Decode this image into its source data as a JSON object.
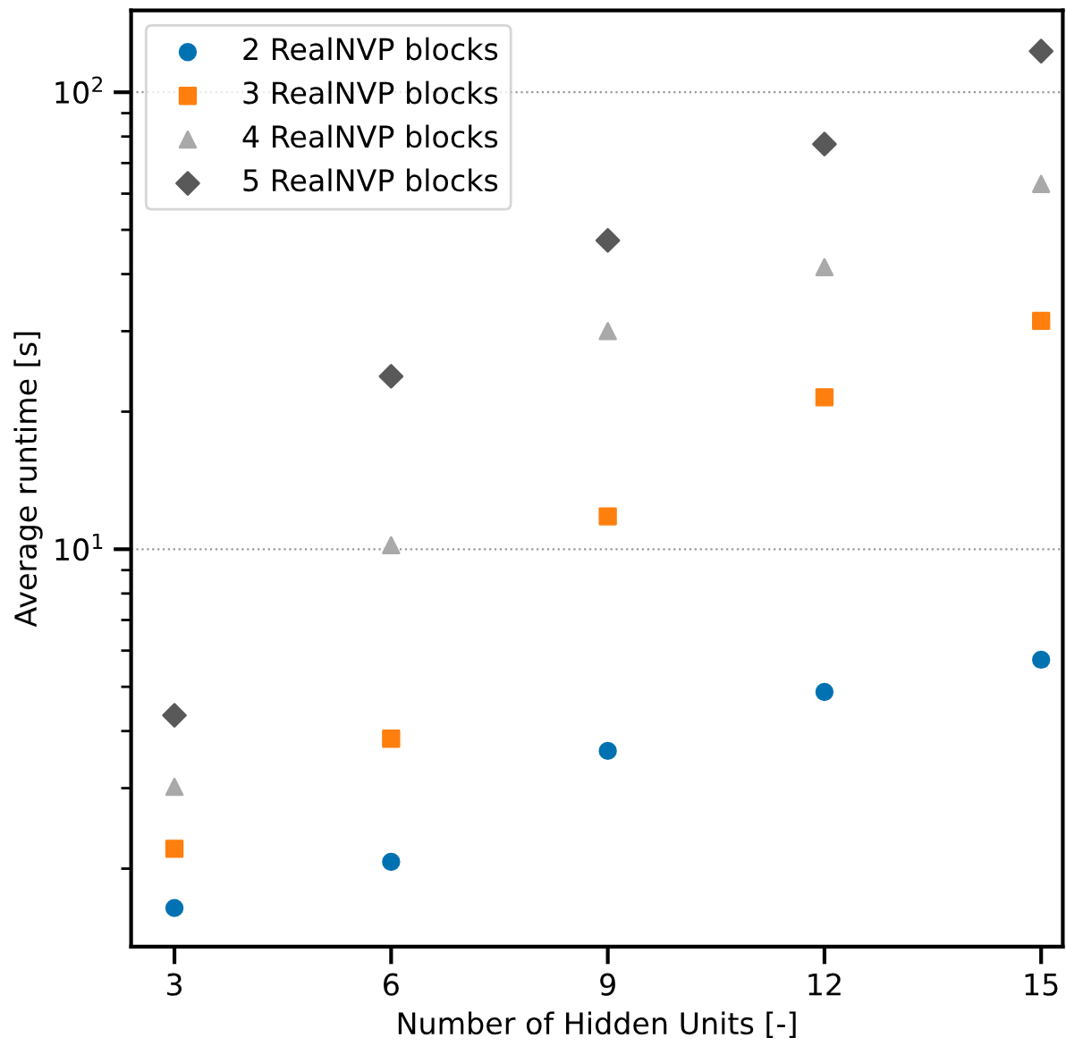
{
  "chart_data": {
    "type": "scatter",
    "xlabel": "Number of Hidden Units [-]",
    "ylabel": "Average runtime [s]",
    "log": "y",
    "grid": "y",
    "legend": "top left",
    "xlim": [
      2.4,
      15.3
    ],
    "xticks": [
      3,
      6,
      9,
      12,
      15
    ],
    "ylim": [
      1.35,
      151
    ],
    "yticks": [
      {
        "value": 10,
        "label": "10$^{1}$"
      },
      {
        "value": 100,
        "label": "10$^{2}$"
      }
    ],
    "series": [
      {
        "name": "2 RealNVP blocks",
        "color": "#0072b2",
        "marker": "circle",
        "x": [
          3,
          6,
          9,
          12,
          15
        ],
        "values": [
          1.64,
          2.07,
          3.62,
          4.87,
          5.73
        ]
      },
      {
        "name": "3 RealNVP blocks",
        "color": "#ff7f0e",
        "marker": "square",
        "x": [
          3,
          6,
          9,
          12,
          15
        ],
        "values": [
          2.21,
          3.85,
          11.8,
          21.5,
          31.6
        ]
      },
      {
        "name": "4 RealNVP blocks",
        "color": "#a9a9a9",
        "marker": "triangle",
        "x": [
          3,
          6,
          9,
          12,
          15
        ],
        "values": [
          3.02,
          10.2,
          30.0,
          41.4,
          63
        ]
      },
      {
        "name": "5 RealNVP blocks",
        "color": "#595959",
        "marker": "diamond",
        "x": [
          3,
          6,
          9,
          12,
          15
        ],
        "values": [
          4.33,
          23.9,
          47.4,
          77,
          123
        ]
      }
    ]
  }
}
